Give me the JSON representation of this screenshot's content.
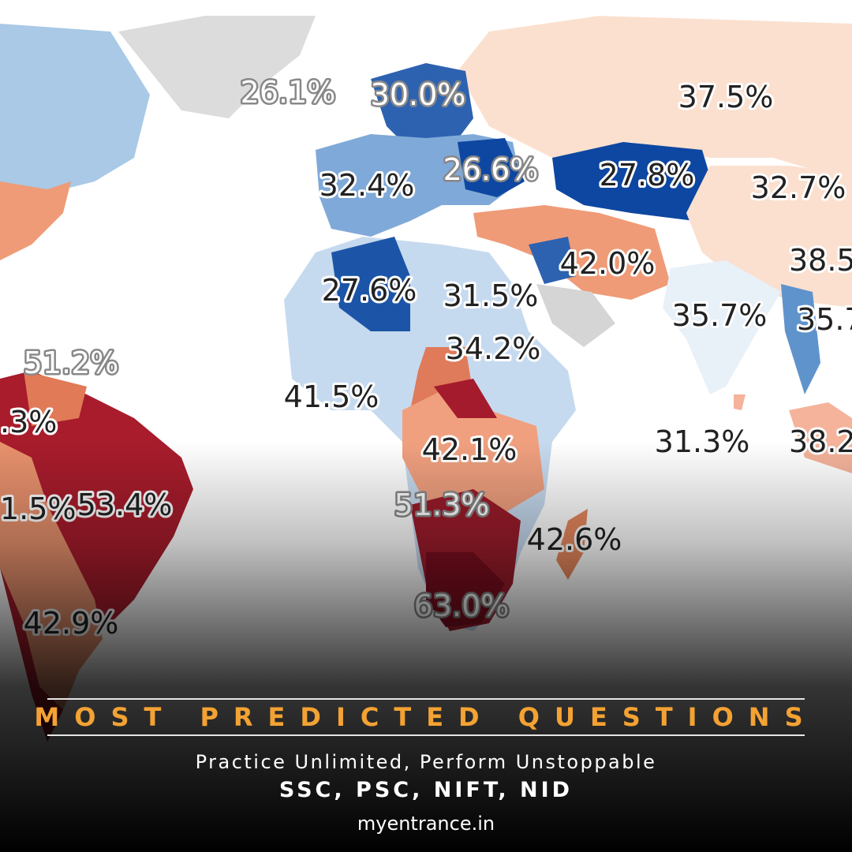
{
  "map": {
    "labels": [
      "26.1%",
      "30.0%",
      "37.5%",
      "32.4%",
      "26.6%",
      "27.8%",
      "32.7%",
      "38.5",
      "42.0%",
      "27.6%",
      "31.5%",
      "35.7%",
      "35.7",
      "51.2%",
      "34.2%",
      "41.5%",
      ".3%",
      "31.3%",
      "38.2",
      "42.1%",
      "1.5%",
      "53.4%",
      "51.3%",
      "42.6%",
      "42.9%",
      "63.0%"
    ]
  },
  "footer": {
    "headline": "MOST PREDICTED QUESTIONS",
    "tagline": "Practice Unlimited, Perform Unstoppable",
    "exams": "SSC, PSC, NIFT, NID",
    "website": "myentrance.in"
  }
}
